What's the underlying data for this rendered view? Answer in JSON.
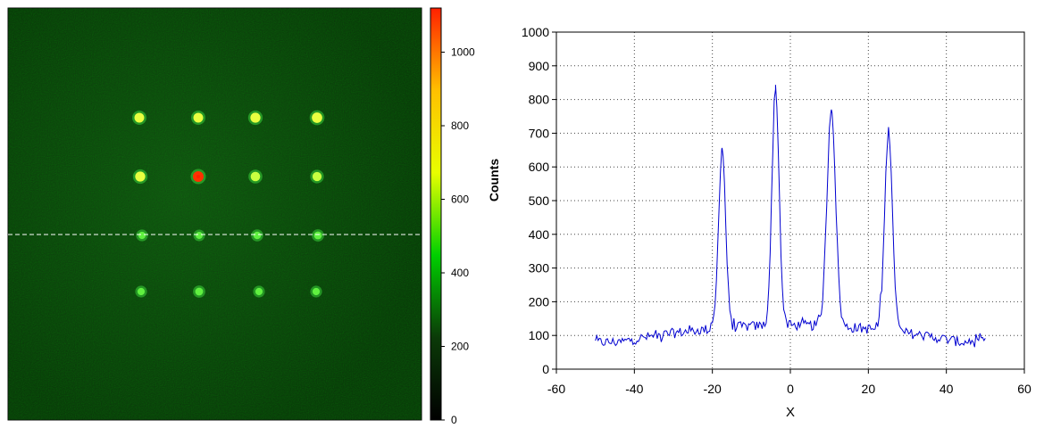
{
  "chart_data": [
    {
      "type": "heatmap",
      "title": "",
      "colorbar": {
        "ticks": [
          "0",
          "200",
          "400",
          "600",
          "800",
          "1000"
        ],
        "tick_values": [
          0,
          200,
          400,
          600,
          800,
          1000
        ],
        "range": [
          0,
          1120
        ],
        "colors": [
          "#000000",
          "#0b3a08",
          "#00d000",
          "#e8ff00",
          "#ffc000",
          "#ff2000"
        ]
      },
      "background_color": "#0c3a0c",
      "spot_grid": {
        "rows": 4,
        "cols": 4,
        "intensity": [
          [
            0.85,
            0.85,
            0.9,
            0.95
          ],
          [
            0.9,
            1.0,
            0.8,
            0.75
          ],
          [
            0.45,
            0.42,
            0.5,
            0.55
          ],
          [
            0.45,
            0.55,
            0.45,
            0.45
          ]
        ]
      },
      "cut_line": "dashed horizontal line through third row of spots"
    },
    {
      "type": "line",
      "xlabel": "X",
      "ylabel": "Counts",
      "xlim": [
        -60,
        60
      ],
      "ylim": [
        0,
        1000
      ],
      "xticks": [
        -60,
        -40,
        -20,
        0,
        20,
        40,
        60
      ],
      "yticks": [
        0,
        100,
        200,
        300,
        400,
        500,
        600,
        700,
        800,
        900,
        1000
      ],
      "grid": true,
      "line_color": "#0000d0",
      "baseline": {
        "x_range": [
          -50,
          50
        ],
        "left_level": 80,
        "center_level": 130,
        "right_level": 80,
        "noise": 15
      },
      "peaks": [
        {
          "x": -17.5,
          "y": 655,
          "width": 0.9
        },
        {
          "x": -3.8,
          "y": 830,
          "width": 0.9
        },
        {
          "x": 10.5,
          "y": 770,
          "width": 1.1
        },
        {
          "x": 25.2,
          "y": 715,
          "width": 1.0
        }
      ]
    }
  ]
}
